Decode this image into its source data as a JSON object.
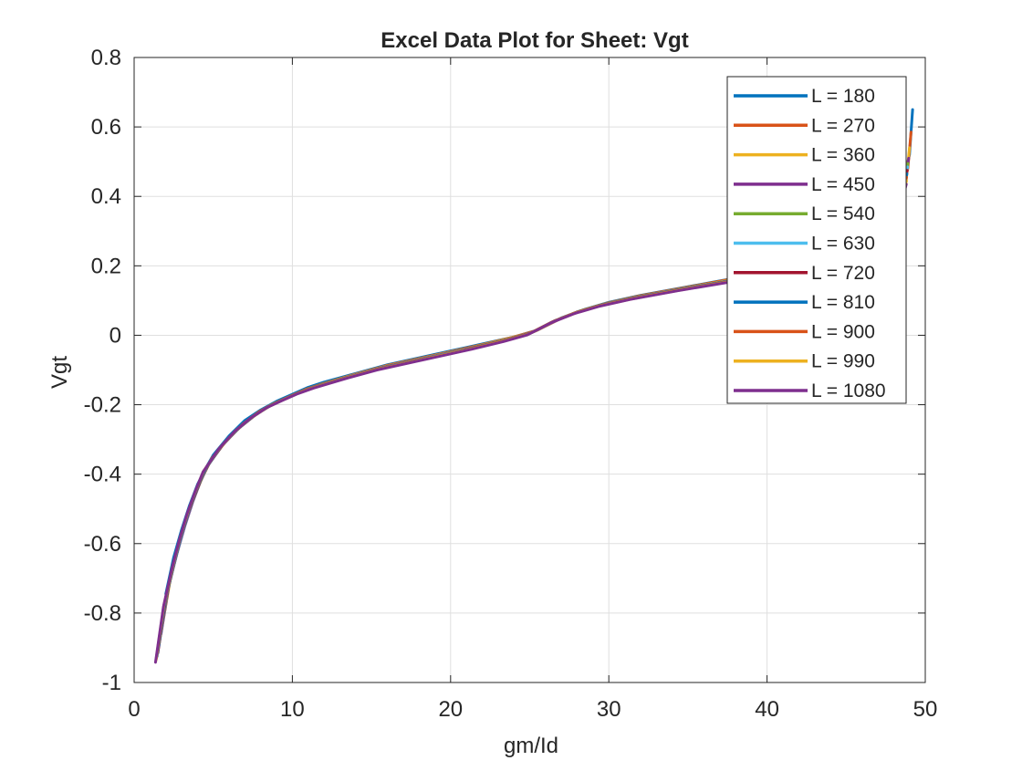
{
  "chart_data": {
    "type": "line",
    "title": "Excel Data Plot for Sheet: Vgt",
    "xlabel": "gm/Id",
    "ylabel": "Vgt",
    "xlim": [
      0,
      50
    ],
    "ylim": [
      -1,
      0.8
    ],
    "xticks": [
      0,
      10,
      20,
      30,
      40,
      50
    ],
    "xtick_labels": [
      "0",
      "10",
      "20",
      "30",
      "40",
      "50"
    ],
    "yticks": [
      -1,
      -0.8,
      -0.6,
      -0.4,
      -0.2,
      0,
      0.2,
      0.4,
      0.6,
      0.8
    ],
    "ytick_labels": [
      "-1",
      "-0.8",
      "-0.6",
      "-0.4",
      "-0.2",
      "0",
      "0.2",
      "0.4",
      "0.6",
      "0.8"
    ],
    "grid": true,
    "legend_position": "top-right",
    "series": [
      {
        "name": "L = 180",
        "color": "#0072BD",
        "x": [
          2.0,
          2.5,
          3.0,
          3.5,
          4.0,
          4.5,
          5.0,
          6.0,
          7.0,
          8.0,
          9.0,
          10.0,
          11.0,
          12.0,
          14.0,
          16.0,
          18.0,
          20.0,
          22.0,
          24.0,
          25.5,
          27.0,
          28.5,
          30.0,
          32.0,
          35.0,
          38.0,
          41.0,
          44.0,
          46.0,
          47.5,
          48.5,
          49.0,
          49.2
        ],
        "y": [
          -0.745,
          -0.64,
          -0.56,
          -0.49,
          -0.43,
          -0.385,
          -0.345,
          -0.29,
          -0.245,
          -0.215,
          -0.19,
          -0.17,
          -0.15,
          -0.135,
          -0.11,
          -0.085,
          -0.065,
          -0.045,
          -0.025,
          -0.005,
          0.015,
          0.05,
          0.075,
          0.095,
          0.115,
          0.14,
          0.165,
          0.19,
          0.225,
          0.27,
          0.33,
          0.42,
          0.52,
          0.65
        ]
      },
      {
        "name": "L = 270",
        "color": "#D95319",
        "x": [
          1.9,
          2.4,
          2.9,
          3.4,
          3.9,
          4.4,
          4.9,
          5.9,
          6.9,
          7.9,
          8.9,
          9.9,
          10.9,
          11.9,
          13.9,
          15.9,
          17.9,
          19.9,
          21.9,
          23.9,
          25.4,
          26.9,
          28.4,
          29.9,
          31.9,
          34.9,
          37.9,
          40.9,
          43.9,
          45.9,
          47.4,
          48.4,
          48.9,
          49.1
        ],
        "y": [
          -0.79,
          -0.67,
          -0.585,
          -0.51,
          -0.45,
          -0.4,
          -0.355,
          -0.3,
          -0.255,
          -0.22,
          -0.195,
          -0.175,
          -0.155,
          -0.14,
          -0.113,
          -0.088,
          -0.068,
          -0.048,
          -0.028,
          -0.006,
          0.013,
          0.047,
          0.073,
          0.093,
          0.113,
          0.138,
          0.163,
          0.187,
          0.22,
          0.26,
          0.31,
          0.39,
          0.48,
          0.585
        ]
      },
      {
        "name": "L = 360",
        "color": "#EDB120",
        "x": [
          1.8,
          2.3,
          2.8,
          3.3,
          3.8,
          4.3,
          4.8,
          5.8,
          6.8,
          7.8,
          8.8,
          9.8,
          10.8,
          11.8,
          13.8,
          15.8,
          17.8,
          19.8,
          21.8,
          23.8,
          25.3,
          26.8,
          28.3,
          29.8,
          31.8,
          34.8,
          37.8,
          40.8,
          43.8,
          45.8,
          47.3,
          48.3,
          48.8,
          49.0
        ],
        "y": [
          -0.83,
          -0.7,
          -0.61,
          -0.53,
          -0.465,
          -0.41,
          -0.365,
          -0.305,
          -0.26,
          -0.225,
          -0.198,
          -0.178,
          -0.158,
          -0.142,
          -0.115,
          -0.09,
          -0.07,
          -0.05,
          -0.03,
          -0.008,
          0.011,
          0.045,
          0.071,
          0.091,
          0.111,
          0.136,
          0.16,
          0.184,
          0.215,
          0.25,
          0.295,
          0.37,
          0.45,
          0.54
        ]
      },
      {
        "name": "L = 450",
        "color": "#7E2F8E",
        "x": [
          1.7,
          2.2,
          2.7,
          3.2,
          3.7,
          4.2,
          4.7,
          5.7,
          6.7,
          7.7,
          8.7,
          9.7,
          10.7,
          11.7,
          13.7,
          15.7,
          17.7,
          19.7,
          21.7,
          23.7,
          25.2,
          26.7,
          28.2,
          29.7,
          31.7,
          34.7,
          37.7,
          40.7,
          43.7,
          45.7,
          47.2,
          48.2,
          48.7,
          48.95
        ],
        "y": [
          -0.86,
          -0.72,
          -0.63,
          -0.55,
          -0.48,
          -0.42,
          -0.372,
          -0.31,
          -0.264,
          -0.228,
          -0.2,
          -0.18,
          -0.16,
          -0.144,
          -0.117,
          -0.092,
          -0.072,
          -0.052,
          -0.032,
          -0.01,
          0.009,
          0.043,
          0.07,
          0.09,
          0.11,
          0.135,
          0.158,
          0.182,
          0.21,
          0.24,
          0.285,
          0.355,
          0.43,
          0.51
        ]
      },
      {
        "name": "L = 540",
        "color": "#77AC30",
        "x": [
          1.6,
          2.1,
          2.6,
          3.1,
          3.6,
          4.1,
          4.6,
          5.6,
          6.6,
          7.6,
          8.6,
          9.6,
          10.6,
          11.6,
          13.6,
          15.6,
          17.6,
          19.6,
          21.6,
          23.6,
          25.1,
          26.6,
          28.1,
          29.6,
          31.6,
          34.6,
          37.6,
          40.6,
          43.6,
          45.6,
          47.1,
          48.1,
          48.6,
          48.9
        ],
        "y": [
          -0.885,
          -0.74,
          -0.645,
          -0.56,
          -0.49,
          -0.43,
          -0.378,
          -0.315,
          -0.268,
          -0.231,
          -0.202,
          -0.182,
          -0.162,
          -0.146,
          -0.119,
          -0.094,
          -0.074,
          -0.054,
          -0.034,
          -0.012,
          0.007,
          0.042,
          0.069,
          0.089,
          0.109,
          0.134,
          0.157,
          0.18,
          0.205,
          0.235,
          0.275,
          0.34,
          0.415,
          0.495
        ]
      },
      {
        "name": "L = 630",
        "color": "#4DBEEE",
        "x": [
          1.55,
          2.05,
          2.55,
          3.05,
          3.55,
          4.05,
          4.55,
          5.55,
          6.55,
          7.55,
          8.55,
          9.55,
          10.55,
          11.55,
          13.55,
          15.55,
          17.55,
          19.55,
          21.55,
          23.55,
          25.05,
          26.55,
          28.05,
          29.55,
          31.55,
          34.55,
          37.55,
          40.55,
          43.55,
          45.55,
          47.05,
          48.05,
          48.55,
          48.88
        ],
        "y": [
          -0.9,
          -0.75,
          -0.655,
          -0.57,
          -0.497,
          -0.435,
          -0.382,
          -0.318,
          -0.27,
          -0.233,
          -0.204,
          -0.183,
          -0.163,
          -0.147,
          -0.12,
          -0.095,
          -0.075,
          -0.055,
          -0.035,
          -0.013,
          0.006,
          0.041,
          0.068,
          0.088,
          0.108,
          0.133,
          0.156,
          0.179,
          0.203,
          0.232,
          0.27,
          0.332,
          0.405,
          0.485
        ]
      },
      {
        "name": "L = 720",
        "color": "#A2142F",
        "x": [
          1.5,
          2.0,
          2.5,
          3.0,
          3.5,
          4.0,
          4.5,
          5.5,
          6.5,
          7.5,
          8.5,
          9.5,
          10.5,
          11.5,
          13.5,
          15.5,
          17.5,
          19.5,
          21.5,
          23.5,
          25.0,
          26.5,
          28.0,
          29.5,
          31.5,
          34.5,
          37.5,
          40.5,
          43.5,
          45.5,
          47.0,
          48.0,
          48.5,
          48.86
        ],
        "y": [
          -0.915,
          -0.76,
          -0.662,
          -0.575,
          -0.502,
          -0.44,
          -0.386,
          -0.321,
          -0.272,
          -0.235,
          -0.205,
          -0.184,
          -0.164,
          -0.148,
          -0.121,
          -0.096,
          -0.076,
          -0.056,
          -0.036,
          -0.014,
          0.005,
          0.04,
          0.067,
          0.087,
          0.107,
          0.132,
          0.155,
          0.178,
          0.2,
          0.228,
          0.265,
          0.325,
          0.395,
          0.475
        ]
      },
      {
        "name": "L = 810",
        "color": "#0072BD",
        "x": [
          1.45,
          1.95,
          2.45,
          2.95,
          3.45,
          3.95,
          4.45,
          5.45,
          6.45,
          7.45,
          8.45,
          9.45,
          10.45,
          11.45,
          13.45,
          15.45,
          17.45,
          19.45,
          21.45,
          23.45,
          24.95,
          26.45,
          27.95,
          29.45,
          31.45,
          34.45,
          37.45,
          40.45,
          43.45,
          45.45,
          46.95,
          47.95,
          48.45,
          48.84
        ],
        "y": [
          -0.925,
          -0.768,
          -0.668,
          -0.58,
          -0.506,
          -0.443,
          -0.389,
          -0.323,
          -0.274,
          -0.236,
          -0.206,
          -0.185,
          -0.165,
          -0.149,
          -0.122,
          -0.097,
          -0.077,
          -0.057,
          -0.037,
          -0.015,
          0.004,
          0.039,
          0.066,
          0.086,
          0.106,
          0.131,
          0.154,
          0.177,
          0.198,
          0.225,
          0.26,
          0.318,
          0.385,
          0.465
        ]
      },
      {
        "name": "L = 900",
        "color": "#D95319",
        "x": [
          1.4,
          1.9,
          2.4,
          2.9,
          3.4,
          3.9,
          4.4,
          5.4,
          6.4,
          7.4,
          8.4,
          9.4,
          10.4,
          11.4,
          13.4,
          15.4,
          17.4,
          19.4,
          21.4,
          23.4,
          24.9,
          26.4,
          27.9,
          29.4,
          31.4,
          34.4,
          37.4,
          40.4,
          43.4,
          45.4,
          46.9,
          47.9,
          48.4,
          48.82
        ],
        "y": [
          -0.932,
          -0.774,
          -0.673,
          -0.584,
          -0.509,
          -0.446,
          -0.391,
          -0.325,
          -0.275,
          -0.237,
          -0.207,
          -0.186,
          -0.166,
          -0.15,
          -0.123,
          -0.098,
          -0.078,
          -0.058,
          -0.038,
          -0.016,
          0.003,
          0.038,
          0.065,
          0.085,
          0.105,
          0.13,
          0.153,
          0.176,
          0.196,
          0.222,
          0.255,
          0.31,
          0.375,
          0.455
        ]
      },
      {
        "name": "L = 990",
        "color": "#EDB120",
        "x": [
          1.38,
          1.88,
          2.38,
          2.88,
          3.38,
          3.88,
          4.38,
          5.38,
          6.38,
          7.38,
          8.38,
          9.38,
          10.38,
          11.38,
          13.38,
          15.38,
          17.38,
          19.38,
          21.38,
          23.38,
          24.88,
          26.38,
          27.88,
          29.38,
          31.38,
          34.38,
          37.38,
          40.38,
          43.38,
          45.38,
          46.88,
          47.88,
          48.38,
          48.81
        ],
        "y": [
          -0.937,
          -0.778,
          -0.677,
          -0.587,
          -0.511,
          -0.448,
          -0.392,
          -0.326,
          -0.276,
          -0.238,
          -0.208,
          -0.187,
          -0.167,
          -0.151,
          -0.124,
          -0.099,
          -0.079,
          -0.059,
          -0.039,
          -0.017,
          0.002,
          0.037,
          0.064,
          0.084,
          0.104,
          0.129,
          0.152,
          0.175,
          0.194,
          0.219,
          0.25,
          0.302,
          0.365,
          0.445
        ]
      },
      {
        "name": "L = 1080",
        "color": "#7E2F8E",
        "x": [
          1.35,
          1.85,
          2.35,
          2.85,
          3.35,
          3.85,
          4.35,
          5.35,
          6.35,
          7.35,
          8.35,
          9.35,
          10.35,
          11.35,
          13.35,
          15.35,
          17.35,
          19.35,
          21.35,
          23.35,
          24.85,
          26.35,
          27.85,
          29.35,
          31.35,
          34.35,
          37.35,
          40.35,
          43.35,
          45.35,
          46.85,
          47.85,
          48.35,
          48.8
        ],
        "y": [
          -0.942,
          -0.782,
          -0.68,
          -0.59,
          -0.513,
          -0.45,
          -0.394,
          -0.327,
          -0.277,
          -0.239,
          -0.209,
          -0.188,
          -0.168,
          -0.152,
          -0.125,
          -0.1,
          -0.08,
          -0.06,
          -0.04,
          -0.018,
          0.001,
          0.036,
          0.063,
          0.083,
          0.103,
          0.128,
          0.151,
          0.174,
          0.192,
          0.216,
          0.245,
          0.295,
          0.355,
          0.435
        ]
      }
    ]
  }
}
